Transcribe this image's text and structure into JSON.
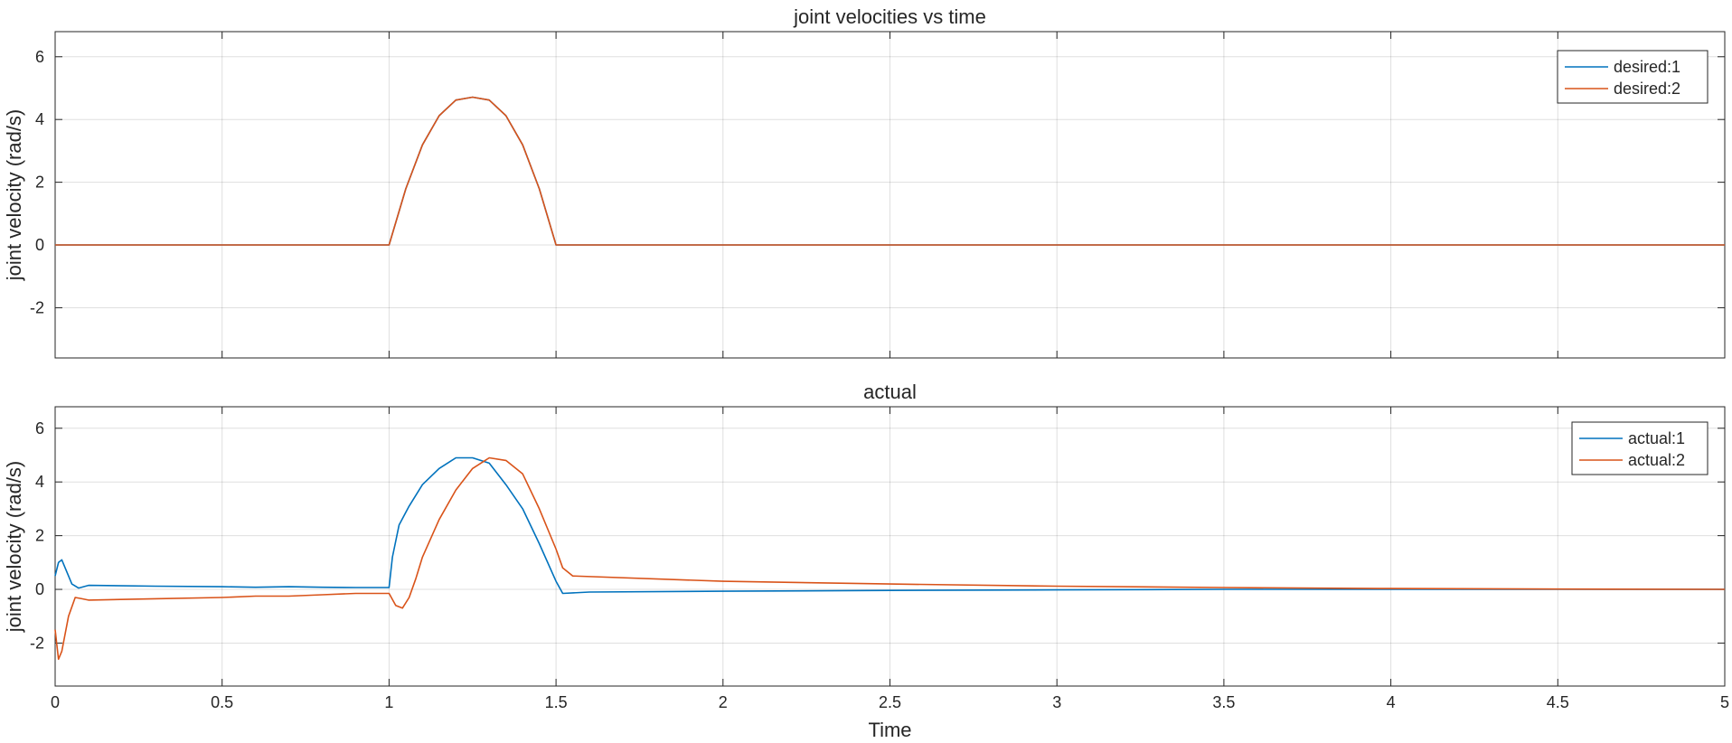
{
  "chart_data": [
    {
      "type": "line",
      "title": "joint velocities vs time",
      "xlabel": "",
      "ylabel": "joint velocity (rad/s)",
      "xlim": [
        0,
        5
      ],
      "ylim": [
        -3.6,
        6.8
      ],
      "xticks": [
        0,
        0.5,
        1,
        1.5,
        2,
        2.5,
        3,
        3.5,
        4,
        4.5,
        5
      ],
      "xtick_labels": [],
      "yticks": [
        -2,
        0,
        2,
        4,
        6
      ],
      "ytick_labels": [
        "-2",
        "0",
        "2",
        "4",
        "6"
      ],
      "grid": true,
      "legend_position": "top-right",
      "series": [
        {
          "name": "desired:1",
          "color": "#0072BD",
          "x": [
            0,
            1,
            1.05,
            1.1,
            1.15,
            1.2,
            1.25,
            1.3,
            1.35,
            1.4,
            1.45,
            1.5,
            5
          ],
          "y": [
            0,
            0,
            1.79,
            3.19,
            4.12,
            4.62,
            4.71,
            4.62,
            4.12,
            3.19,
            1.79,
            0,
            0
          ]
        },
        {
          "name": "desired:2",
          "color": "#D95319",
          "x": [
            0,
            1,
            1.05,
            1.1,
            1.15,
            1.2,
            1.25,
            1.3,
            1.35,
            1.4,
            1.45,
            1.5,
            5
          ],
          "y": [
            0,
            0,
            1.79,
            3.19,
            4.12,
            4.62,
            4.71,
            4.62,
            4.12,
            3.19,
            1.79,
            0,
            0
          ]
        }
      ]
    },
    {
      "type": "line",
      "title": "actual",
      "xlabel": "Time",
      "ylabel": "joint velocity (rad/s)",
      "xlim": [
        0,
        5
      ],
      "ylim": [
        -3.6,
        6.8
      ],
      "xticks": [
        0,
        0.5,
        1,
        1.5,
        2,
        2.5,
        3,
        3.5,
        4,
        4.5,
        5
      ],
      "xtick_labels": [
        "0",
        "0.5",
        "1",
        "1.5",
        "2",
        "2.5",
        "3",
        "3.5",
        "4",
        "4.5",
        "5"
      ],
      "yticks": [
        -2,
        0,
        2,
        4,
        6
      ],
      "ytick_labels": [
        "-2",
        "0",
        "2",
        "4",
        "6"
      ],
      "grid": true,
      "legend_position": "top-right",
      "series": [
        {
          "name": "actual:1",
          "color": "#0072BD",
          "x": [
            0,
            0.01,
            0.02,
            0.03,
            0.05,
            0.07,
            0.1,
            0.3,
            0.5,
            0.6,
            0.7,
            0.8,
            0.9,
            1.0,
            1.01,
            1.03,
            1.06,
            1.1,
            1.15,
            1.2,
            1.25,
            1.3,
            1.35,
            1.4,
            1.45,
            1.5,
            1.52,
            1.6,
            2.0,
            2.5,
            3.0,
            3.5,
            4.0,
            4.5,
            5.0
          ],
          "y": [
            0.5,
            1.0,
            1.1,
            0.8,
            0.2,
            0.05,
            0.15,
            0.12,
            0.1,
            0.08,
            0.1,
            0.08,
            0.07,
            0.07,
            1.2,
            2.4,
            3.1,
            3.9,
            4.5,
            4.9,
            4.9,
            4.7,
            3.9,
            3.0,
            1.7,
            0.3,
            -0.15,
            -0.1,
            -0.07,
            -0.04,
            -0.02,
            0.0,
            0.0,
            0.0,
            0.0
          ]
        },
        {
          "name": "actual:2",
          "color": "#D95319",
          "x": [
            0,
            0.01,
            0.02,
            0.04,
            0.06,
            0.08,
            0.1,
            0.3,
            0.5,
            0.6,
            0.7,
            0.8,
            0.9,
            1.0,
            1.02,
            1.04,
            1.06,
            1.08,
            1.1,
            1.15,
            1.2,
            1.25,
            1.3,
            1.35,
            1.4,
            1.45,
            1.5,
            1.52,
            1.55,
            2.0,
            2.5,
            3.0,
            3.5,
            4.0,
            4.5,
            5.0
          ],
          "y": [
            -1.5,
            -2.6,
            -2.3,
            -1.0,
            -0.3,
            -0.35,
            -0.4,
            -0.35,
            -0.3,
            -0.25,
            -0.25,
            -0.2,
            -0.15,
            -0.15,
            -0.6,
            -0.7,
            -0.3,
            0.4,
            1.2,
            2.6,
            3.7,
            4.5,
            4.9,
            4.8,
            4.3,
            3.0,
            1.5,
            0.8,
            0.5,
            0.3,
            0.2,
            0.12,
            0.07,
            0.03,
            0.01,
            0.0
          ]
        }
      ]
    }
  ]
}
